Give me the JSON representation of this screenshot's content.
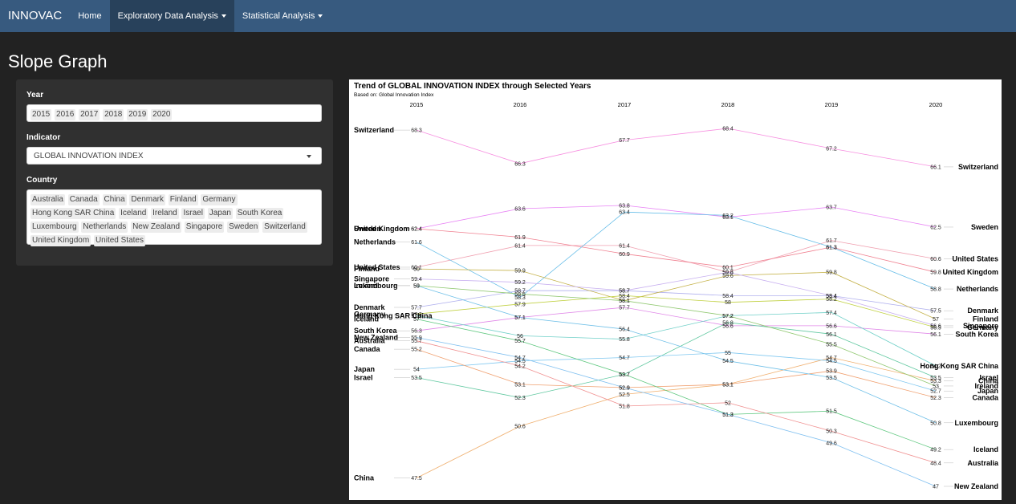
{
  "navbar": {
    "brand": "INNOVAC",
    "items": [
      {
        "label": "Home",
        "dropdown": false,
        "active": false
      },
      {
        "label": "Exploratory Data Analysis",
        "dropdown": true,
        "active": true
      },
      {
        "label": "Statistical Analysis",
        "dropdown": true,
        "active": false
      }
    ],
    "color": "#375a7f"
  },
  "page": {
    "title": "Slope Graph"
  },
  "controls": {
    "year": {
      "label": "Year",
      "selected": [
        "2015",
        "2016",
        "2017",
        "2018",
        "2019",
        "2020"
      ]
    },
    "indicator": {
      "label": "Indicator",
      "value": "GLOBAL INNOVATION INDEX"
    },
    "country": {
      "label": "Country",
      "selected": [
        "Australia",
        "Canada",
        "China",
        "Denmark",
        "Finland",
        "Germany",
        "Hong Kong SAR China",
        "Iceland",
        "Ireland",
        "Israel",
        "Japan",
        "South Korea",
        "Luxembourg",
        "Netherlands",
        "New Zealand",
        "Singapore",
        "Sweden",
        "Switzerland",
        "United Kingdom",
        "United States"
      ]
    }
  },
  "chart_data": {
    "type": "line",
    "title": "Trend of GLOBAL INNOVATION INDEX through Selected Years",
    "subtitle": "Based on: Global Innovation Index",
    "x": [
      "2015",
      "2016",
      "2017",
      "2018",
      "2019",
      "2020"
    ],
    "ylim": [
      47,
      68.4
    ],
    "grid": false,
    "legend": "none",
    "series": [
      {
        "name": "Switzerland",
        "values": [
          68.3,
          66.3,
          67.7,
          68.4,
          67.2,
          66.1
        ],
        "color": "#f78fe0"
      },
      {
        "name": "Sweden",
        "values": [
          62.4,
          63.6,
          63.8,
          63.1,
          63.7,
          62.5
        ],
        "color": "#e883f5"
      },
      {
        "name": "United States",
        "values": [
          60.1,
          61.4,
          61.4,
          59.8,
          61.7,
          60.6
        ],
        "color": "#f0a0b0"
      },
      {
        "name": "United Kingdom",
        "values": [
          62.4,
          61.9,
          60.9,
          60.1,
          61.3,
          59.8
        ],
        "color": "#f08090"
      },
      {
        "name": "Netherlands",
        "values": [
          61.6,
          58.3,
          63.4,
          63.2,
          61.3,
          58.8
        ],
        "color": "#66bde8"
      },
      {
        "name": "Denmark",
        "values": [
          57.7,
          58.7,
          58.7,
          58.4,
          58.4,
          57.5
        ],
        "color": "#b0b0ee"
      },
      {
        "name": "Finland",
        "values": [
          60,
          59.9,
          58.1,
          59.6,
          59.8,
          57
        ],
        "color": "#c5b24a"
      },
      {
        "name": "Singapore",
        "values": [
          59.4,
          59.2,
          58.7,
          59.8,
          58.4,
          56.6
        ],
        "color": "#c8b0f0"
      },
      {
        "name": "Germany",
        "values": [
          57.3,
          57.9,
          58.4,
          58,
          58.2,
          56.5
        ],
        "color": "#c0d040"
      },
      {
        "name": "South Korea",
        "values": [
          56.3,
          57.1,
          57.7,
          56.6,
          56.6,
          56.1
        ],
        "color": "#e088e8"
      },
      {
        "name": "Hong Kong SAR China",
        "values": [
          57.2,
          56,
          55.8,
          57.2,
          57.4,
          54.2
        ],
        "color": "#70d0c8"
      },
      {
        "name": "Israel",
        "values": [
          53.5,
          52.3,
          53.7,
          56.8,
          56.1,
          53.5
        ],
        "color": "#60c8a0"
      },
      {
        "name": "China",
        "values": [
          47.5,
          50.6,
          52.5,
          53.1,
          54.7,
          53.3
        ],
        "color": "#f0b070"
      },
      {
        "name": "Ireland",
        "values": [
          59,
          58.5,
          58.1,
          57.2,
          55.5,
          53
        ],
        "color": "#90c870"
      },
      {
        "name": "Japan",
        "values": [
          54,
          54.5,
          54.7,
          55,
          54.5,
          52.7
        ],
        "color": "#80c8f0"
      },
      {
        "name": "Canada",
        "values": [
          55.2,
          53.1,
          52.9,
          53.1,
          53.9,
          52.3
        ],
        "color": "#f0a070"
      },
      {
        "name": "Luxembourg",
        "values": [
          59,
          57.1,
          56.4,
          54.5,
          53.5,
          50.8
        ],
        "color": "#70c0e8"
      },
      {
        "name": "Iceland",
        "values": [
          57,
          55.7,
          53.7,
          51.3,
          51.5,
          49.2
        ],
        "color": "#60c880"
      },
      {
        "name": "Australia",
        "values": [
          55.7,
          54.2,
          51.8,
          52,
          50.3,
          48.4
        ],
        "color": "#f09090"
      },
      {
        "name": "New Zealand",
        "values": [
          55.9,
          54.7,
          52.9,
          51.3,
          49.6,
          47
        ],
        "color": "#80c0f0"
      }
    ]
  }
}
